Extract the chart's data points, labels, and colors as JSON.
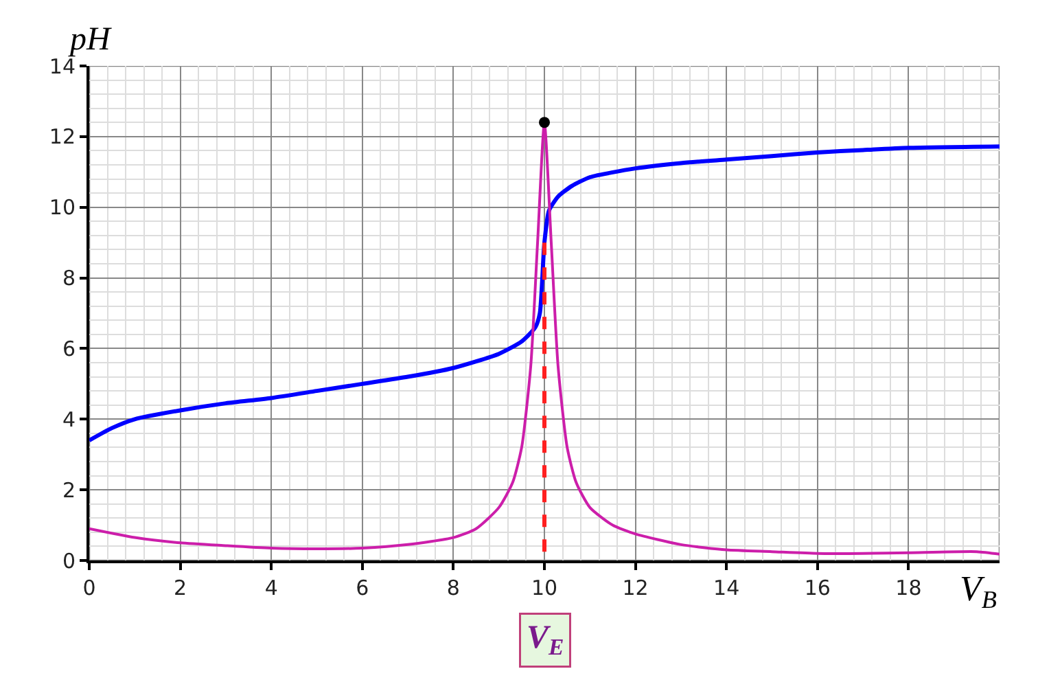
{
  "chart_data": {
    "type": "line",
    "xlabel": "V$_{B}$",
    "ylabel": "pH",
    "xlim": [
      0,
      20
    ],
    "ylim": [
      0,
      14
    ],
    "xticks": [
      0,
      2,
      4,
      6,
      8,
      10,
      12,
      14,
      16,
      18
    ],
    "yticks": [
      0,
      2,
      4,
      6,
      8,
      10,
      12,
      14
    ],
    "grid": true,
    "marker": "none",
    "line_style": "solid",
    "series": [
      {
        "color": "#0000ff",
        "x": [
          0,
          0.5,
          1,
          2,
          3,
          4,
          5,
          6,
          7,
          8,
          9,
          9.5,
          9.8,
          9.9,
          10,
          10.1,
          10.3,
          10.6,
          11,
          12,
          13,
          14,
          15,
          16,
          17,
          18,
          20
        ],
        "values": [
          3.4,
          3.75,
          4.0,
          4.25,
          4.45,
          4.6,
          4.8,
          5.0,
          5.2,
          5.45,
          5.85,
          6.2,
          6.6,
          7.0,
          9.0,
          9.9,
          10.3,
          10.6,
          10.85,
          11.1,
          11.25,
          11.35,
          11.45,
          11.55,
          11.62,
          11.68,
          11.72
        ]
      },
      {
        "color": "#cc1eaa",
        "x": [
          0,
          1,
          2,
          3,
          4,
          5,
          6,
          7,
          8,
          8.5,
          9,
          9.3,
          9.5,
          9.7,
          9.85,
          10,
          10.15,
          10.3,
          10.5,
          10.7,
          11,
          11.5,
          12,
          13,
          14,
          15,
          16,
          17,
          18,
          19.5,
          20
        ],
        "values": [
          0.9,
          0.65,
          0.5,
          0.42,
          0.35,
          0.33,
          0.35,
          0.45,
          0.65,
          0.9,
          1.5,
          2.2,
          3.2,
          5.5,
          9,
          12.4,
          9,
          5.5,
          3.2,
          2.2,
          1.5,
          1.0,
          0.75,
          0.45,
          0.3,
          0.25,
          0.2,
          0.2,
          0.22,
          0.25,
          0.18
        ]
      },
      {
        "type": "scatter",
        "color": "#000000",
        "marker": "circle",
        "x": [
          10
        ],
        "values": [
          12.4
        ]
      }
    ],
    "ref_lines": [
      {
        "axis": "x",
        "value": 10,
        "label": "V$_{E}$",
        "color": "#ff2020",
        "line_style": "dashed"
      }
    ]
  }
}
